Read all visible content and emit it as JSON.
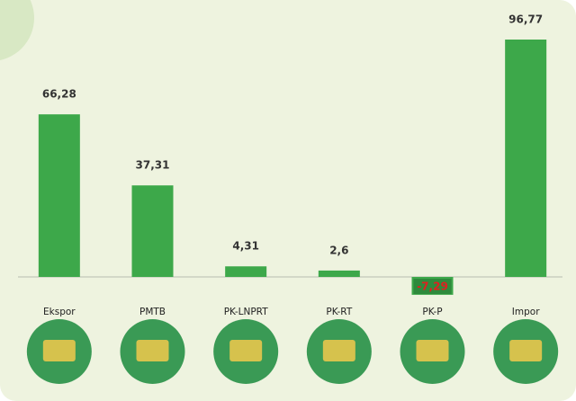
{
  "chart_data": {
    "type": "bar",
    "categories": [
      "Ekspor",
      "PMTB",
      "PK-LNPRT",
      "PK-RT",
      "PK-P",
      "Impor"
    ],
    "values": [
      66.28,
      37.31,
      4.31,
      2.6,
      -7.29,
      96.77
    ],
    "value_labels": [
      "66,28",
      "37,31",
      "4,31",
      "2,6",
      "-7,29",
      "96,77"
    ],
    "color": "#3da84a"
  }
}
